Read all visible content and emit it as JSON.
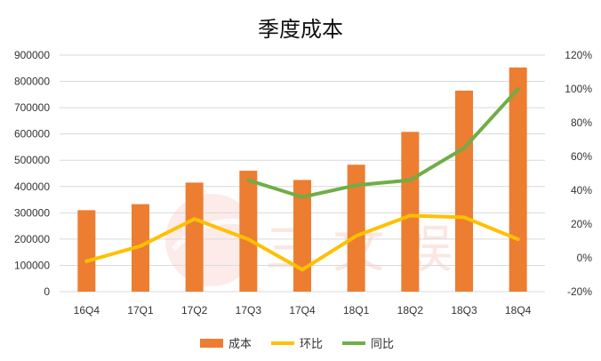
{
  "chart_data": {
    "type": "bar",
    "title": "季度成本",
    "categories": [
      "16Q4",
      "17Q1",
      "17Q2",
      "17Q3",
      "17Q4",
      "18Q1",
      "18Q2",
      "18Q3",
      "18Q4"
    ],
    "series": [
      {
        "name": "成本",
        "type": "bar",
        "axis": "left",
        "color": "#ED7D31",
        "values": [
          310000,
          333000,
          415000,
          460000,
          425000,
          483000,
          608000,
          765000,
          853000
        ]
      },
      {
        "name": "环比",
        "type": "line",
        "axis": "right",
        "color": "#FFC000",
        "values": [
          -0.02,
          0.07,
          0.23,
          0.11,
          -0.07,
          0.13,
          0.25,
          0.24,
          0.11
        ]
      },
      {
        "name": "同比",
        "type": "line",
        "axis": "right",
        "color": "#70AD47",
        "values": [
          null,
          null,
          null,
          0.46,
          0.36,
          0.43,
          0.46,
          0.65,
          1.0
        ]
      }
    ],
    "y_left": {
      "min": 0,
      "max": 900000,
      "ticks": [
        "0",
        "100000",
        "200000",
        "300000",
        "400000",
        "500000",
        "600000",
        "700000",
        "800000",
        "900000"
      ]
    },
    "y_right": {
      "min": -0.2,
      "max": 1.2,
      "ticks": [
        "-20%",
        "0%",
        "20%",
        "40%",
        "60%",
        "80%",
        "100%",
        "120%"
      ]
    },
    "grid": true,
    "legend": "bottom"
  },
  "watermark": {
    "text": "三 文 娱"
  }
}
